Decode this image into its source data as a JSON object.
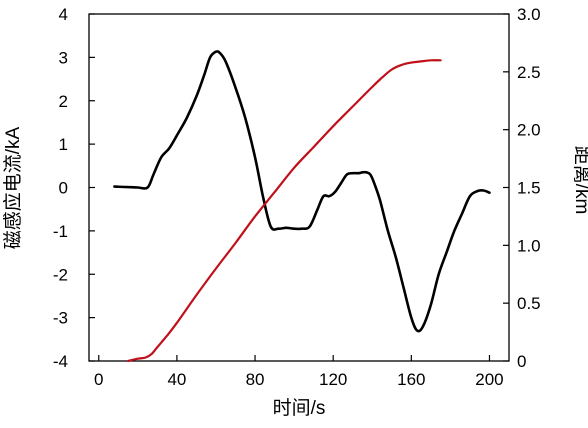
{
  "chart_data": {
    "type": "line",
    "xlabel": "时间/s",
    "ylabel_left": "磁感应电流/kA",
    "ylabel_right": "距离/km",
    "xlim": [
      -5,
      210
    ],
    "xticks": [
      0,
      40,
      80,
      120,
      160,
      200
    ],
    "ylim_left": [
      -4,
      4
    ],
    "yticks_left": [
      -4,
      -3,
      -2,
      -1,
      0,
      1,
      2,
      3,
      4
    ],
    "ylim_right": [
      0,
      3.0
    ],
    "yticks_right": [
      "0",
      "0.5",
      "1.0",
      "1.5",
      "2.0",
      "2.5",
      "3.0"
    ],
    "grid": false,
    "series": [
      {
        "axis": "left",
        "color": "#000000",
        "x": [
          8,
          15,
          20,
          25,
          28,
          32,
          36,
          40,
          45,
          50,
          54,
          57,
          60,
          62,
          65,
          70,
          75,
          80,
          84,
          88,
          92,
          96,
          100,
          104,
          108,
          112,
          115,
          118,
          121,
          124,
          127,
          130,
          133,
          135,
          137,
          139,
          141,
          144,
          148,
          152,
          156,
          160,
          163,
          166,
          170,
          174,
          178,
          182,
          186,
          190,
          194,
          197,
          200
        ],
        "values": [
          0.02,
          0.01,
          0.0,
          0.0,
          0.3,
          0.7,
          0.9,
          1.2,
          1.6,
          2.1,
          2.6,
          3.0,
          3.13,
          3.1,
          2.9,
          2.3,
          1.6,
          0.7,
          -0.2,
          -0.9,
          -0.95,
          -0.93,
          -0.95,
          -0.95,
          -0.9,
          -0.5,
          -0.2,
          -0.2,
          -0.1,
          0.1,
          0.3,
          0.33,
          0.33,
          0.35,
          0.35,
          0.3,
          0.1,
          -0.3,
          -1.0,
          -1.6,
          -2.3,
          -3.0,
          -3.3,
          -3.2,
          -2.7,
          -2.0,
          -1.5,
          -1.0,
          -0.6,
          -0.2,
          -0.08,
          -0.07,
          -0.12
        ]
      },
      {
        "axis": "right",
        "color": "#c0101a",
        "x": [
          15,
          20,
          24,
          27,
          30,
          35,
          40,
          50,
          60,
          70,
          80,
          90,
          100,
          110,
          120,
          130,
          140,
          145,
          150,
          155,
          160,
          165,
          170,
          175
        ],
        "values": [
          0.0,
          0.02,
          0.03,
          0.06,
          0.12,
          0.22,
          0.33,
          0.57,
          0.8,
          1.02,
          1.25,
          1.46,
          1.67,
          1.85,
          2.03,
          2.2,
          2.37,
          2.45,
          2.52,
          2.56,
          2.58,
          2.59,
          2.6,
          2.6
        ]
      }
    ]
  }
}
